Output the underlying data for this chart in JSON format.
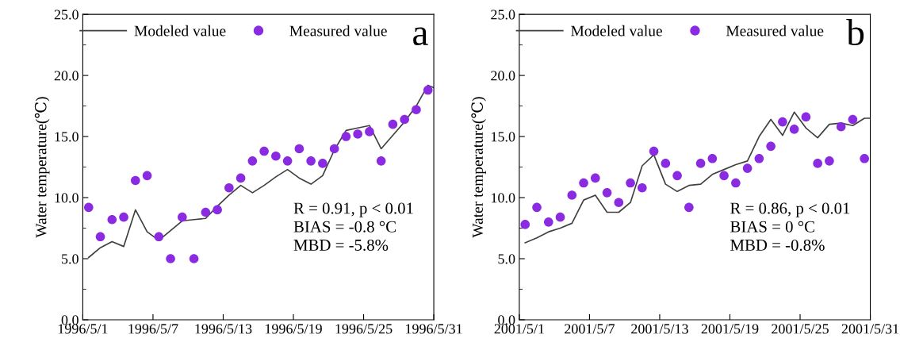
{
  "chart_data": [
    {
      "type": "line",
      "title": "a",
      "ylabel": "Water temperature(℃)",
      "xlim": [
        "1996-05-01",
        "1996-05-31"
      ],
      "ylim": [
        0,
        25
      ],
      "xticks": [
        {
          "value": "1996-05-01",
          "label": "1996/5/1"
        },
        {
          "value": "1996-05-07",
          "label": "1996/5/7"
        },
        {
          "value": "1996-05-13",
          "label": "1996/5/13"
        },
        {
          "value": "1996-05-19",
          "label": "1996/5/19"
        },
        {
          "value": "1996-05-25",
          "label": "1996/5/25"
        },
        {
          "value": "1996-05-31",
          "label": "1996/5/31"
        }
      ],
      "yticks": [
        {
          "value": 0,
          "label": "0.0"
        },
        {
          "value": 5,
          "label": "5.0"
        },
        {
          "value": 10,
          "label": "10.0"
        },
        {
          "value": 15,
          "label": "15.0"
        },
        {
          "value": 20,
          "label": "20.0"
        },
        {
          "value": 25,
          "label": "25.0"
        }
      ],
      "legend": "top",
      "grid": false,
      "annotations": [
        "R = 0.91, p < 0.01",
        "BIAS = -0.8 °C",
        "MBD = -5.8%"
      ],
      "series": [
        {
          "name": "Modeled value",
          "color": "#404040",
          "line_style": "solid",
          "marker": "none",
          "x": [
            "1996-05-01T12:00",
            "1996-05-02T12:00",
            "1996-05-03T12:00",
            "1996-05-04T12:00",
            "1996-05-05T12:00",
            "1996-05-06T12:00",
            "1996-05-07T12:00",
            "1996-05-08T12:00",
            "1996-05-09T12:00",
            "1996-05-10T12:00",
            "1996-05-11T12:00",
            "1996-05-12T12:00",
            "1996-05-13T12:00",
            "1996-05-14T12:00",
            "1996-05-15T12:00",
            "1996-05-16T12:00",
            "1996-05-17T12:00",
            "1996-05-18T12:00",
            "1996-05-19T12:00",
            "1996-05-20T12:00",
            "1996-05-21T12:00",
            "1996-05-22T12:00",
            "1996-05-23T12:00",
            "1996-05-24T12:00",
            "1996-05-25T12:00",
            "1996-05-26T12:00",
            "1996-05-27T12:00",
            "1996-05-28T12:00",
            "1996-05-29T12:00",
            "1996-05-30T12:00",
            "1996-05-31T00:00"
          ],
          "values": [
            5.1,
            5.9,
            6.4,
            6.0,
            9.0,
            7.2,
            6.5,
            7.3,
            8.1,
            8.2,
            8.3,
            9.3,
            10.2,
            11.0,
            10.4,
            11.0,
            11.7,
            12.3,
            11.6,
            11.1,
            11.8,
            13.9,
            15.5,
            15.7,
            15.9,
            14.0,
            15.1,
            16.2,
            17.5,
            19.2,
            19.0
          ]
        },
        {
          "name": "Measured value",
          "type": "scatter",
          "color": "#8a2be2",
          "marker": "circle",
          "x": [
            "1996-05-01T12:00",
            "1996-05-02T12:00",
            "1996-05-03T12:00",
            "1996-05-04T12:00",
            "1996-05-05T12:00",
            "1996-05-06T12:00",
            "1996-05-07T12:00",
            "1996-05-08T12:00",
            "1996-05-09T12:00",
            "1996-05-10T12:00",
            "1996-05-11T12:00",
            "1996-05-12T12:00",
            "1996-05-13T12:00",
            "1996-05-14T12:00",
            "1996-05-15T12:00",
            "1996-05-16T12:00",
            "1996-05-17T12:00",
            "1996-05-18T12:00",
            "1996-05-19T12:00",
            "1996-05-20T12:00",
            "1996-05-21T12:00",
            "1996-05-22T12:00",
            "1996-05-23T12:00",
            "1996-05-24T12:00",
            "1996-05-25T12:00",
            "1996-05-26T12:00",
            "1996-05-27T12:00",
            "1996-05-28T12:00",
            "1996-05-29T12:00",
            "1996-05-30T12:00"
          ],
          "values": [
            9.2,
            6.8,
            8.2,
            8.4,
            11.4,
            11.8,
            6.8,
            5.0,
            8.4,
            5.0,
            8.8,
            9.0,
            10.8,
            11.6,
            13.0,
            13.8,
            13.4,
            13.0,
            14.0,
            13.0,
            12.8,
            14.0,
            15.0,
            15.2,
            15.4,
            13.0,
            16.0,
            16.4,
            17.2,
            18.8
          ]
        }
      ]
    },
    {
      "type": "line",
      "title": "b",
      "ylabel": "Water temperature(℃)",
      "xlim": [
        "2001-05-01",
        "2001-05-31"
      ],
      "ylim": [
        0,
        25
      ],
      "xticks": [
        {
          "value": "2001-05-01",
          "label": "2001/5/1"
        },
        {
          "value": "2001-05-07",
          "label": "2001/5/7"
        },
        {
          "value": "2001-05-13",
          "label": "2001/5/13"
        },
        {
          "value": "2001-05-19",
          "label": "2001/5/19"
        },
        {
          "value": "2001-05-25",
          "label": "2001/5/25"
        },
        {
          "value": "2001-05-31",
          "label": "2001/5/31"
        }
      ],
      "yticks": [
        {
          "value": 0,
          "label": "0.0"
        },
        {
          "value": 5,
          "label": "5.0"
        },
        {
          "value": 10,
          "label": "10.0"
        },
        {
          "value": 15,
          "label": "15.0"
        },
        {
          "value": 20,
          "label": "20.0"
        },
        {
          "value": 25,
          "label": "25.0"
        }
      ],
      "legend": "top",
      "grid": false,
      "annotations": [
        "R = 0.86, p < 0.01",
        "BIAS = 0 °C",
        "MBD = -0.8%"
      ],
      "series": [
        {
          "name": "Modeled value",
          "color": "#404040",
          "line_style": "solid",
          "marker": "none",
          "x": [
            "2001-05-01T12:00",
            "2001-05-02T12:00",
            "2001-05-03T12:00",
            "2001-05-04T12:00",
            "2001-05-05T12:00",
            "2001-05-06T12:00",
            "2001-05-07T12:00",
            "2001-05-08T12:00",
            "2001-05-09T12:00",
            "2001-05-10T12:00",
            "2001-05-11T12:00",
            "2001-05-12T12:00",
            "2001-05-13T12:00",
            "2001-05-14T12:00",
            "2001-05-15T12:00",
            "2001-05-16T12:00",
            "2001-05-17T12:00",
            "2001-05-18T12:00",
            "2001-05-19T12:00",
            "2001-05-20T12:00",
            "2001-05-21T12:00",
            "2001-05-22T12:00",
            "2001-05-23T12:00",
            "2001-05-24T12:00",
            "2001-05-25T12:00",
            "2001-05-26T12:00",
            "2001-05-27T12:00",
            "2001-05-28T12:00",
            "2001-05-29T12:00",
            "2001-05-30T12:00",
            "2001-05-31T00:00"
          ],
          "values": [
            6.3,
            6.7,
            7.2,
            7.5,
            7.9,
            9.8,
            10.2,
            8.8,
            8.8,
            9.6,
            12.6,
            13.5,
            11.1,
            10.5,
            11.0,
            11.1,
            11.9,
            12.3,
            12.7,
            13.0,
            15.0,
            16.4,
            15.1,
            17.0,
            15.7,
            14.9,
            16.0,
            16.1,
            15.9,
            16.5,
            16.5
          ]
        },
        {
          "name": "Measured value",
          "type": "scatter",
          "color": "#8a2be2",
          "marker": "circle",
          "x": [
            "2001-05-01T12:00",
            "2001-05-02T12:00",
            "2001-05-03T12:00",
            "2001-05-04T12:00",
            "2001-05-05T12:00",
            "2001-05-06T12:00",
            "2001-05-07T12:00",
            "2001-05-08T12:00",
            "2001-05-09T12:00",
            "2001-05-10T12:00",
            "2001-05-11T12:00",
            "2001-05-12T12:00",
            "2001-05-13T12:00",
            "2001-05-14T12:00",
            "2001-05-15T12:00",
            "2001-05-16T12:00",
            "2001-05-17T12:00",
            "2001-05-18T12:00",
            "2001-05-19T12:00",
            "2001-05-20T12:00",
            "2001-05-21T12:00",
            "2001-05-22T12:00",
            "2001-05-23T12:00",
            "2001-05-24T12:00",
            "2001-05-25T12:00",
            "2001-05-26T12:00",
            "2001-05-27T12:00",
            "2001-05-28T12:00",
            "2001-05-29T12:00",
            "2001-05-30T12:00"
          ],
          "values": [
            7.8,
            9.2,
            8.0,
            8.4,
            10.2,
            11.2,
            11.6,
            10.4,
            9.6,
            11.2,
            10.8,
            13.8,
            12.8,
            11.8,
            9.2,
            12.8,
            13.2,
            11.8,
            11.2,
            12.4,
            13.2,
            14.2,
            16.2,
            15.6,
            16.6,
            12.8,
            13.0,
            15.8,
            16.4,
            13.2
          ]
        }
      ]
    }
  ]
}
